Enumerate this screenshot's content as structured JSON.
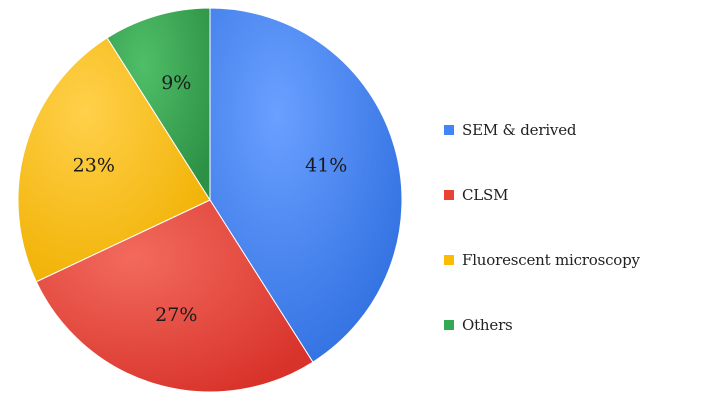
{
  "chart_data": {
    "type": "pie",
    "categories": [
      "SEM & derived",
      "CLSM",
      "Fluorescent microscopy",
      "Others"
    ],
    "values": [
      41,
      27,
      23,
      9
    ],
    "value_labels": [
      "41%",
      "27%",
      "23%",
      "9%"
    ],
    "colors": [
      "#4285F4",
      "#EA4335",
      "#FBBC04",
      "#34A853"
    ],
    "start_angle": "12 o'clock",
    "direction": "clockwise",
    "legend_position": "right"
  }
}
